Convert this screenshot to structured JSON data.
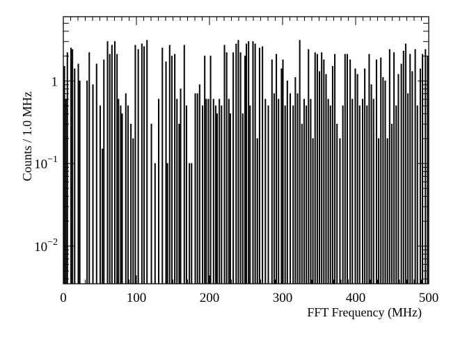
{
  "chart_data": {
    "type": "bar",
    "style": "histogram-step",
    "xlabel": "FFT Frequency (MHz)",
    "ylabel": "Counts / 1.0 MHz",
    "xlim": [
      0,
      500
    ],
    "ylim": [
      0.0035,
      6
    ],
    "yscale": "log",
    "grid": false,
    "legend": "none",
    "bin_width": 1.0,
    "x_ticks": [
      {
        "value": 0,
        "label": "0"
      },
      {
        "value": 100,
        "label": "100"
      },
      {
        "value": 200,
        "label": "200"
      },
      {
        "value": 300,
        "label": "300"
      },
      {
        "value": 400,
        "label": "400"
      },
      {
        "value": 500,
        "label": "500"
      }
    ],
    "y_ticks": [
      {
        "value": 0.01,
        "base": "10",
        "exp": "−2"
      },
      {
        "value": 0.1,
        "base": "10",
        "exp": "−1"
      },
      {
        "value": 1,
        "base": "1",
        "exp": ""
      }
    ],
    "peaks": [
      [
        1,
        1.5
      ],
      [
        3,
        0.6
      ],
      [
        5,
        2.2
      ],
      [
        10,
        2.5
      ],
      [
        12,
        2.4
      ],
      [
        15,
        1.4
      ],
      [
        20,
        1.6
      ],
      [
        22,
        1.0
      ],
      [
        32,
        1.0
      ],
      [
        35,
        2.2
      ],
      [
        40,
        0.9
      ],
      [
        45,
        1.6
      ],
      [
        50,
        0.5
      ],
      [
        53,
        0.15
      ],
      [
        55,
        1.8
      ],
      [
        60,
        3.0
      ],
      [
        63,
        2.1
      ],
      [
        66,
        2.7
      ],
      [
        70,
        3.0
      ],
      [
        73,
        2.1
      ],
      [
        75,
        0.6
      ],
      [
        78,
        0.5
      ],
      [
        80,
        0.4
      ],
      [
        85,
        0.7
      ],
      [
        88,
        0.5
      ],
      [
        92,
        0.3
      ],
      [
        95,
        0.2
      ],
      [
        98,
        2.7
      ],
      [
        102,
        2.4
      ],
      [
        107,
        2.8
      ],
      [
        110,
        2.6
      ],
      [
        114,
        3.1
      ],
      [
        120,
        0.3
      ],
      [
        125,
        0.1
      ],
      [
        130,
        0.6
      ],
      [
        135,
        2.5
      ],
      [
        140,
        1.7
      ],
      [
        142,
        0.1
      ],
      [
        145,
        2.7
      ],
      [
        148,
        2.0
      ],
      [
        152,
        2.1
      ],
      [
        155,
        0.6
      ],
      [
        158,
        0.3
      ],
      [
        160,
        0.8
      ],
      [
        165,
        2.7
      ],
      [
        168,
        0.5
      ],
      [
        172,
        0.1
      ],
      [
        175,
        0.1
      ],
      [
        180,
        0.7
      ],
      [
        183,
        0.7
      ],
      [
        186,
        0.9
      ],
      [
        190,
        0.5
      ],
      [
        193,
        2.0
      ],
      [
        195,
        0.6
      ],
      [
        198,
        0.6
      ],
      [
        201,
        2.0
      ],
      [
        205,
        0.6
      ],
      [
        208,
        0.5
      ],
      [
        210,
        0.4
      ],
      [
        213,
        0.6
      ],
      [
        216,
        0.5
      ],
      [
        220,
        2.7
      ],
      [
        223,
        2.2
      ],
      [
        226,
        0.6
      ],
      [
        228,
        0.4
      ],
      [
        232,
        2.2
      ],
      [
        236,
        2.8
      ],
      [
        239,
        3.1
      ],
      [
        242,
        2.2
      ],
      [
        245,
        0.4
      ],
      [
        248,
        2.0
      ],
      [
        250,
        2.8
      ],
      [
        253,
        3.0
      ],
      [
        255,
        0.5
      ],
      [
        259,
        3.0
      ],
      [
        262,
        2.8
      ],
      [
        265,
        0.2
      ],
      [
        268,
        2.5
      ],
      [
        272,
        2.6
      ],
      [
        276,
        0.6
      ],
      [
        280,
        0.5
      ],
      [
        285,
        1.8
      ],
      [
        288,
        0.7
      ],
      [
        291,
        2.1
      ],
      [
        294,
        0.6
      ],
      [
        298,
        1.4
      ],
      [
        300,
        1.8
      ],
      [
        303,
        0.5
      ],
      [
        306,
        1.0
      ],
      [
        310,
        0.7
      ],
      [
        314,
        0.5
      ],
      [
        317,
        1.1
      ],
      [
        320,
        0.7
      ],
      [
        323,
        3.1
      ],
      [
        326,
        0.3
      ],
      [
        329,
        0.6
      ],
      [
        332,
        0.5
      ],
      [
        335,
        2.4
      ],
      [
        338,
        0.6
      ],
      [
        341,
        0.2
      ],
      [
        344,
        2.2
      ],
      [
        347,
        2.1
      ],
      [
        350,
        1.3
      ],
      [
        353,
        2.2
      ],
      [
        356,
        1.8
      ],
      [
        359,
        1.2
      ],
      [
        362,
        0.6
      ],
      [
        365,
        0.5
      ],
      [
        368,
        1.5
      ],
      [
        371,
        2.1
      ],
      [
        374,
        0.3
      ],
      [
        378,
        0.2
      ],
      [
        382,
        0.5
      ],
      [
        385,
        2.1
      ],
      [
        388,
        2.1
      ],
      [
        392,
        1.8
      ],
      [
        395,
        0.6
      ],
      [
        399,
        1.4
      ],
      [
        402,
        1.2
      ],
      [
        405,
        0.5
      ],
      [
        409,
        0.6
      ],
      [
        412,
        1.4
      ],
      [
        415,
        0.5
      ],
      [
        418,
        2.1
      ],
      [
        421,
        0.9
      ],
      [
        424,
        0.6
      ],
      [
        428,
        1.8
      ],
      [
        431,
        0.2
      ],
      [
        434,
        1.9
      ],
      [
        437,
        1.1
      ],
      [
        440,
        1.0
      ],
      [
        443,
        0.2
      ],
      [
        446,
        2.4
      ],
      [
        449,
        0.3
      ],
      [
        452,
        2.2
      ],
      [
        455,
        0.5
      ],
      [
        458,
        1.2
      ],
      [
        462,
        1.6
      ],
      [
        465,
        2.3
      ],
      [
        468,
        2.8
      ],
      [
        471,
        0.7
      ],
      [
        474,
        2.1
      ],
      [
        477,
        1.3
      ],
      [
        481,
        2.4
      ],
      [
        484,
        0.5
      ],
      [
        488,
        1.4
      ],
      [
        491,
        2.1
      ],
      [
        495,
        2.4
      ],
      [
        498,
        2.0
      ]
    ]
  }
}
